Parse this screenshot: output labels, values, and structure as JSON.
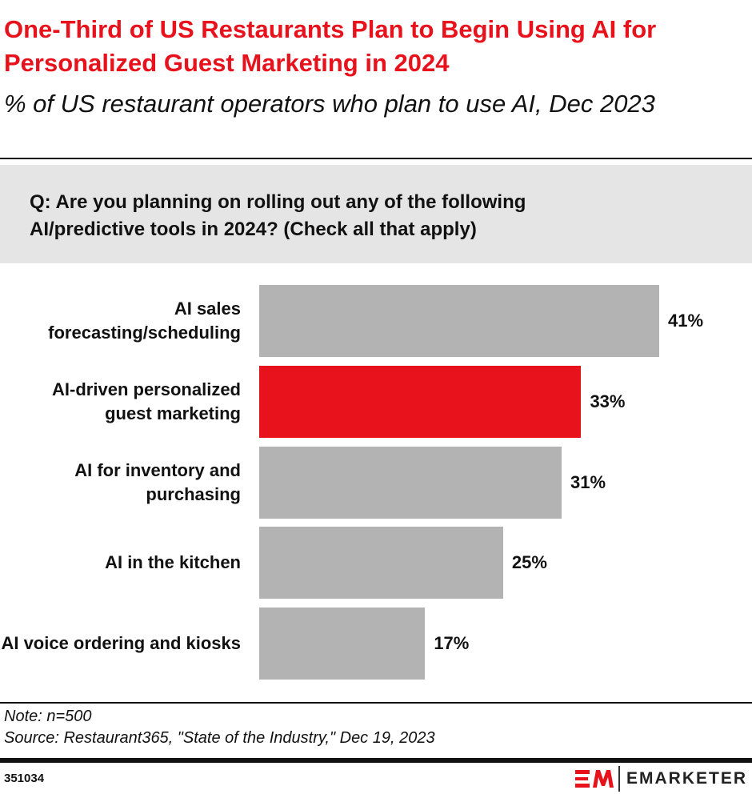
{
  "header": {
    "title": "One-Third of US Restaurants Plan to Begin Using AI for Personalized Guest Marketing in 2024",
    "subtitle": "% of US restaurant operators who plan to use AI, Dec 2023"
  },
  "question": "Q: Are you planning on rolling out any of the following AI/predictive tools in 2024? (Check all that apply)",
  "chart_data": {
    "type": "bar",
    "orientation": "horizontal",
    "categories": [
      "AI sales forecasting/scheduling",
      "AI-driven personalized guest marketing",
      "AI for inventory and purchasing",
      "AI in the kitchen",
      "AI voice ordering and kiosks"
    ],
    "values": [
      41,
      33,
      31,
      25,
      17
    ],
    "labels": [
      "41%",
      "33%",
      "31%",
      "25%",
      "17%"
    ],
    "highlight_index": 1,
    "colors": {
      "default": "#b3b3b3",
      "highlight": "#e8121d"
    },
    "xlim": [
      0,
      41
    ],
    "grid": false
  },
  "footer": {
    "note": "Note: n=500",
    "source": "Source: Restaurant365, \"State of the Industry,\" Dec 19, 2023",
    "chart_id": "351034",
    "brand": "EMARKETER"
  },
  "colors": {
    "accent": "#e8121d",
    "text": "#111111",
    "question_bg": "#e5e5e5"
  }
}
